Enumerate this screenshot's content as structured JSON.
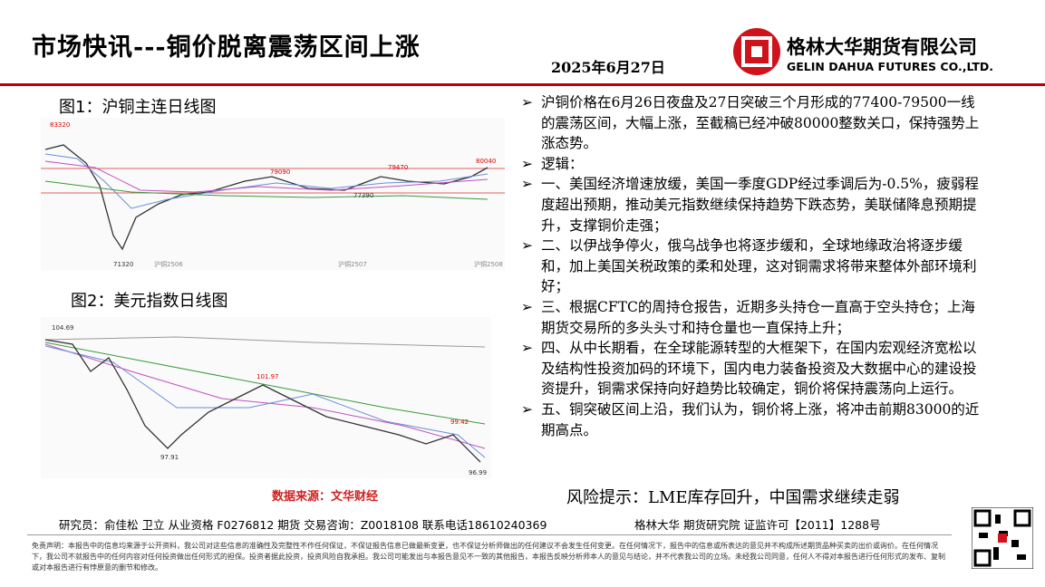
{
  "header": {
    "title": "市场快讯---铜价脱离震荡区间上涨",
    "date": "2025年6月27日",
    "company_cn": "格林大华期货有限公司",
    "company_en": "GELIN DAHUA FUTURES CO.,LTD."
  },
  "figures": [
    {
      "caption": "图1：沪铜主连日线图",
      "labels": [
        "83320",
        "80040",
        "79090",
        "79470",
        "77390",
        "71320"
      ],
      "axis_labels": [
        "沪铜2506",
        "沪铜2507",
        "沪铜2508"
      ]
    },
    {
      "caption": "图2：美元指数日线图",
      "labels": [
        "104.69",
        "101.97",
        "99.42",
        "97.91",
        "96.99"
      ]
    }
  ],
  "source": "数据来源：文华财经",
  "bullets": [
    "沪铜价格在6月26日夜盘及27日突破三个月形成的77400-79500一线的震荡区间，大幅上涨，至截稿已经冲破80000整数关口，保持强势上涨态势。",
    "逻辑：",
    "一、美国经济增速放缓，美国一季度GDP经过季调后为-0.5%，疲弱程度超出预期，推动美元指数继续保持趋势下跌态势，美联储降息预期提升，支撑铜价走强；",
    "二、以伊战争停火，俄乌战争也将逐步缓和，全球地缘政治将逐步缓和，加上美国关税政策的柔和处理，这对铜需求将带来整体外部环境利好；",
    "三、根据CFTC的周持仓报告，近期多头持仓一直高于空头持仓；上海期货交易所的多头头寸和持仓量也一直保持上升；",
    "四、从中长期看，在全球能源转型的大框架下，在国内宏观经济宽松以及结构性投资加码的环境下，国内电力装备投资及大数据中心的建设投资提升，铜需求保持向好趋势比较确定，铜价将保持震荡向上运行。",
    "五、铜突破区间上沿，我们认为，铜价将上涨，将冲击前期83000的近期高点。"
  ],
  "risk": "风险提示：LME库存回升，中国需求继续走弱",
  "footer": {
    "researchers": "研究员：俞佳松 卫立   从业资格 F0276812   期货 交易咨询：Z0018108   联系电话18610240369",
    "institute": "格林大华 期货研究院   证监许可【2011】1288号",
    "disclaimer": "免责声明：本报告中的信息均来源于公开资料，我公司对这些信息的准确性及完整性不作任何保证，不保证报告信息已做最新变更，也不保证分析师做出的任何建议不会发生任何变更。在任何情况下，报告中的信息或所表达的意见并不构成所述期货品种买卖的出价或询价。在任何情况下，我公司不就报告中的任何内容对任何投资做出任何形式的担保。投资者据此投资，投资风险自我承担。我公司可能发出与本报告意见不一致的其他报告，本报告反映分析师本人的意见与结论，并不代表我公司的立场。未经我公司同意，任何人不得对本报告进行任何形式的发布、复制或对本报告进行有悖原意的删节和修改。"
  }
}
